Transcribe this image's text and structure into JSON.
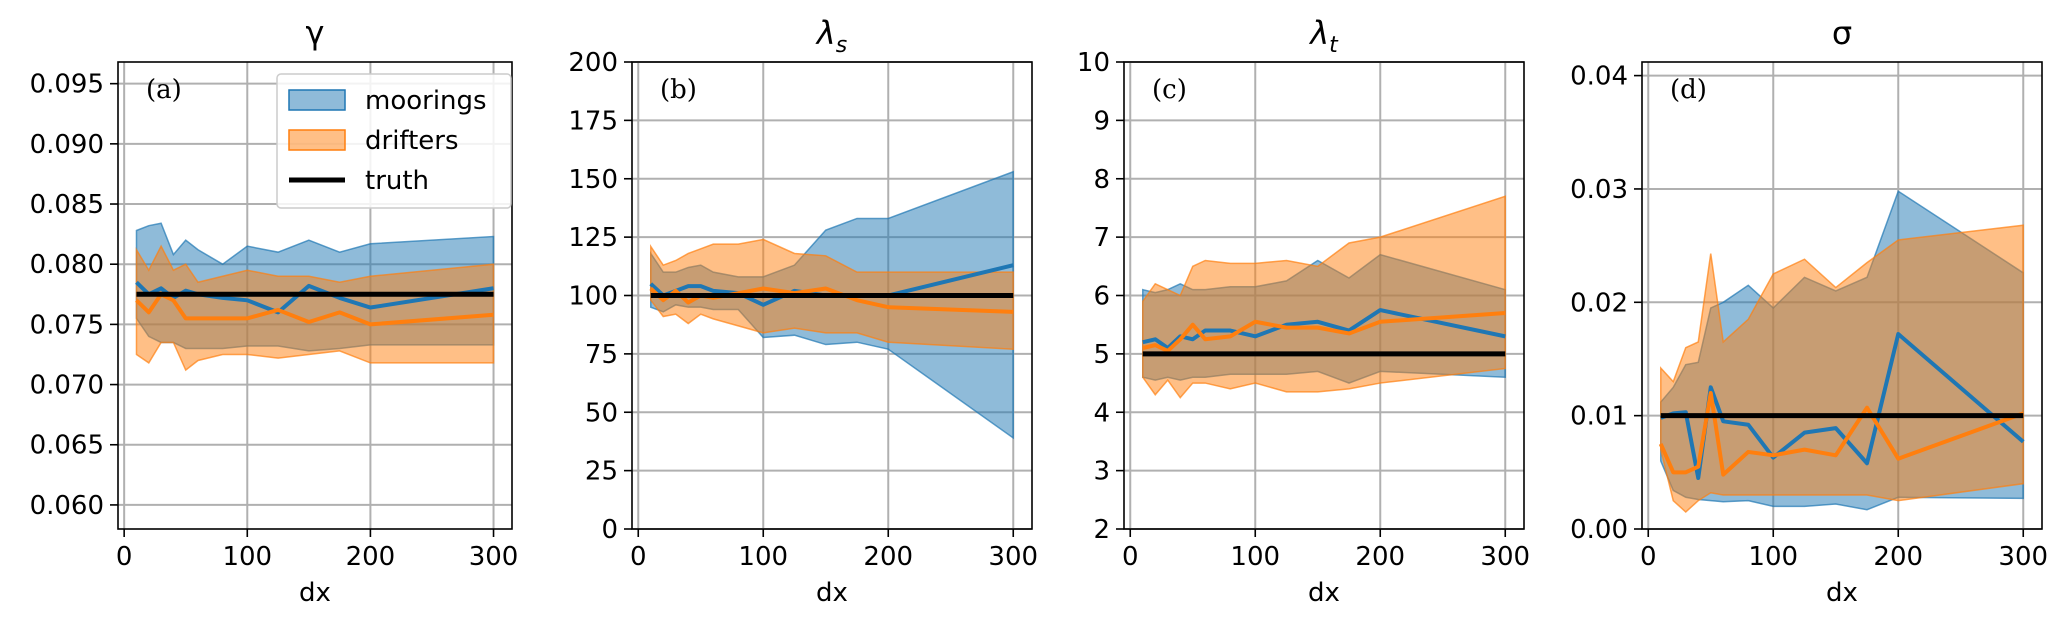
{
  "colors": {
    "moorings": "#1f77b4",
    "drifters": "#ff7f0e",
    "truth": "#000000",
    "grid": "#b0b0b0"
  },
  "legend": {
    "items": [
      {
        "label": "moorings",
        "kind": "fill",
        "color": "#1f77b4"
      },
      {
        "label": "drifters",
        "kind": "fill",
        "color": "#ff7f0e"
      },
      {
        "label": "truth",
        "kind": "line",
        "color": "#000000"
      }
    ]
  },
  "chart_data": [
    {
      "id": "gamma",
      "type": "area",
      "title": "γ",
      "title_italic": false,
      "title_sub": "",
      "letter": "(a)",
      "xlabel": "dx",
      "xlim": [
        -5,
        315
      ],
      "ylim": [
        0.058,
        0.0968
      ],
      "xticks": [
        0,
        100,
        200,
        300
      ],
      "yticks": [
        0.06,
        0.065,
        0.07,
        0.075,
        0.08,
        0.085,
        0.09,
        0.095
      ],
      "yticklabels": [
        "0.060",
        "0.065",
        "0.070",
        "0.075",
        "0.080",
        "0.085",
        "0.090",
        "0.095"
      ],
      "truth": 0.0775,
      "x": [
        10,
        20,
        30,
        40,
        50,
        60,
        80,
        100,
        125,
        150,
        175,
        200,
        300
      ],
      "series": [
        {
          "name": "moorings",
          "mean": [
            0.0785,
            0.0775,
            0.078,
            0.0772,
            0.0778,
            0.0775,
            0.0772,
            0.077,
            0.076,
            0.0782,
            0.0772,
            0.0764,
            0.078
          ],
          "upper": [
            0.0828,
            0.0832,
            0.0834,
            0.0808,
            0.082,
            0.0812,
            0.08,
            0.0815,
            0.081,
            0.082,
            0.081,
            0.0817,
            0.0823
          ],
          "lower": [
            0.0755,
            0.074,
            0.0735,
            0.0735,
            0.073,
            0.073,
            0.073,
            0.0732,
            0.0732,
            0.0728,
            0.073,
            0.0733,
            0.0733
          ]
        },
        {
          "name": "drifters",
          "mean": [
            0.077,
            0.076,
            0.0775,
            0.077,
            0.0755,
            0.0755,
            0.0755,
            0.0755,
            0.0762,
            0.0752,
            0.076,
            0.075,
            0.0758
          ],
          "upper": [
            0.0812,
            0.0795,
            0.0815,
            0.0795,
            0.08,
            0.0785,
            0.079,
            0.0795,
            0.079,
            0.079,
            0.0785,
            0.079,
            0.08
          ],
          "lower": [
            0.0725,
            0.0718,
            0.0735,
            0.0735,
            0.0712,
            0.072,
            0.0725,
            0.0725,
            0.0722,
            0.0725,
            0.0728,
            0.0718,
            0.0718
          ]
        }
      ]
    },
    {
      "id": "lambda-s",
      "type": "area",
      "title": "λ",
      "title_italic": true,
      "title_sub": "s",
      "letter": "(b)",
      "xlabel": "dx",
      "xlim": [
        -5,
        315
      ],
      "ylim": [
        0,
        200
      ],
      "xticks": [
        0,
        100,
        200,
        300
      ],
      "yticks": [
        0,
        25,
        50,
        75,
        100,
        125,
        150,
        175,
        200
      ],
      "yticklabels": [
        "0",
        "25",
        "50",
        "75",
        "100",
        "125",
        "150",
        "175",
        "200"
      ],
      "truth": 100,
      "x": [
        10,
        20,
        30,
        40,
        50,
        60,
        80,
        100,
        125,
        150,
        175,
        200,
        300
      ],
      "series": [
        {
          "name": "moorings",
          "mean": [
            105,
            100,
            102,
            104,
            104,
            102,
            101,
            96,
            102,
            100,
            100,
            100,
            113
          ],
          "upper": [
            118,
            110,
            110,
            112,
            113,
            110,
            108,
            108,
            113,
            128,
            133,
            133,
            153
          ],
          "lower": [
            95,
            93,
            96,
            95,
            95,
            94,
            94,
            82,
            83,
            79,
            80,
            77,
            39
          ]
        },
        {
          "name": "drifters",
          "mean": [
            103,
            98,
            102,
            97,
            100,
            99,
            101,
            103,
            101,
            103,
            98,
            95,
            93
          ],
          "upper": [
            121,
            113,
            115,
            118,
            120,
            122,
            122,
            124,
            118,
            117,
            110,
            110,
            110
          ],
          "lower": [
            98,
            91,
            92,
            88,
            92,
            90,
            87,
            84,
            86,
            84,
            84,
            80,
            77
          ]
        }
      ]
    },
    {
      "id": "lambda-t",
      "type": "area",
      "title": "λ",
      "title_italic": true,
      "title_sub": "t",
      "letter": "(c)",
      "xlabel": "dx",
      "xlim": [
        -5,
        315
      ],
      "ylim": [
        2,
        10
      ],
      "xticks": [
        0,
        100,
        200,
        300
      ],
      "yticks": [
        2,
        3,
        4,
        5,
        6,
        7,
        8,
        9,
        10
      ],
      "yticklabels": [
        "2",
        "3",
        "4",
        "5",
        "6",
        "7",
        "8",
        "9",
        "10"
      ],
      "truth": 5,
      "x": [
        10,
        20,
        30,
        40,
        50,
        60,
        80,
        100,
        125,
        150,
        175,
        200,
        300
      ],
      "series": [
        {
          "name": "moorings",
          "mean": [
            5.2,
            5.25,
            5.1,
            5.3,
            5.25,
            5.4,
            5.4,
            5.3,
            5.5,
            5.55,
            5.4,
            5.75,
            5.3
          ],
          "upper": [
            6.1,
            6.05,
            6.1,
            6.2,
            6.1,
            6.1,
            6.15,
            6.15,
            6.25,
            6.6,
            6.3,
            6.7,
            6.1
          ],
          "lower": [
            4.6,
            4.55,
            4.6,
            4.55,
            4.6,
            4.6,
            4.65,
            4.65,
            4.65,
            4.7,
            4.5,
            4.7,
            4.6
          ]
        },
        {
          "name": "drifters",
          "mean": [
            5.1,
            5.15,
            5.05,
            5.25,
            5.5,
            5.25,
            5.3,
            5.55,
            5.45,
            5.45,
            5.35,
            5.55,
            5.7
          ],
          "upper": [
            5.9,
            6.2,
            6.1,
            6.0,
            6.5,
            6.6,
            6.55,
            6.55,
            6.6,
            6.5,
            6.9,
            7.0,
            7.7
          ],
          "lower": [
            4.6,
            4.3,
            4.55,
            4.25,
            4.5,
            4.5,
            4.4,
            4.5,
            4.35,
            4.35,
            4.4,
            4.5,
            4.75
          ]
        }
      ]
    },
    {
      "id": "sigma",
      "type": "area",
      "title": "σ",
      "title_italic": false,
      "title_sub": "",
      "letter": "(d)",
      "xlabel": "dx",
      "xlim": [
        -5,
        315
      ],
      "ylim": [
        0,
        0.0412
      ],
      "xticks": [
        0,
        100,
        200,
        300
      ],
      "yticks": [
        0.0,
        0.01,
        0.02,
        0.03,
        0.04
      ],
      "yticklabels": [
        "0.00",
        "0.01",
        "0.02",
        "0.03",
        "0.04"
      ],
      "truth": 0.01,
      "x": [
        10,
        20,
        30,
        40,
        50,
        60,
        80,
        100,
        125,
        150,
        175,
        200,
        300
      ],
      "series": [
        {
          "name": "moorings",
          "mean": [
            0.0098,
            0.0102,
            0.0103,
            0.0045,
            0.0125,
            0.0095,
            0.0092,
            0.0063,
            0.0085,
            0.0089,
            0.0058,
            0.0172,
            0.0077
          ],
          "upper": [
            0.0112,
            0.0125,
            0.0145,
            0.0147,
            0.0195,
            0.02,
            0.0215,
            0.0195,
            0.0222,
            0.021,
            0.0222,
            0.0298,
            0.0226
          ],
          "lower": [
            0.006,
            0.0034,
            0.0028,
            0.0026,
            0.0025,
            0.0024,
            0.0025,
            0.002,
            0.002,
            0.0022,
            0.0017,
            0.0028,
            0.0027
          ]
        },
        {
          "name": "drifters",
          "mean": [
            0.0075,
            0.005,
            0.005,
            0.0055,
            0.012,
            0.0048,
            0.0068,
            0.0065,
            0.007,
            0.0065,
            0.0107,
            0.0062,
            0.0102
          ],
          "upper": [
            0.0142,
            0.013,
            0.016,
            0.0165,
            0.0243,
            0.0165,
            0.0185,
            0.0225,
            0.0238,
            0.0213,
            0.0235,
            0.0255,
            0.0268
          ],
          "lower": [
            0.007,
            0.0025,
            0.0015,
            0.0025,
            0.0032,
            0.003,
            0.003,
            0.003,
            0.003,
            0.003,
            0.003,
            0.0025,
            0.004
          ]
        }
      ]
    }
  ]
}
